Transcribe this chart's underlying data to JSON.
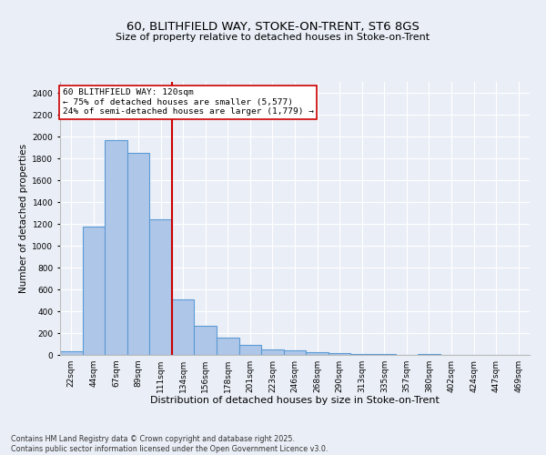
{
  "title": "60, BLITHFIELD WAY, STOKE-ON-TRENT, ST6 8GS",
  "subtitle": "Size of property relative to detached houses in Stoke-on-Trent",
  "xlabel": "Distribution of detached houses by size in Stoke-on-Trent",
  "ylabel": "Number of detached properties",
  "categories": [
    "22sqm",
    "44sqm",
    "67sqm",
    "89sqm",
    "111sqm",
    "134sqm",
    "156sqm",
    "178sqm",
    "201sqm",
    "223sqm",
    "246sqm",
    "268sqm",
    "290sqm",
    "313sqm",
    "335sqm",
    "357sqm",
    "380sqm",
    "402sqm",
    "424sqm",
    "447sqm",
    "469sqm"
  ],
  "values": [
    30,
    1175,
    1970,
    1850,
    1240,
    510,
    270,
    155,
    88,
    47,
    38,
    22,
    15,
    10,
    5,
    2,
    8,
    2,
    1,
    1,
    2
  ],
  "bar_color": "#aec6e8",
  "bar_edge_color": "#5b9bd5",
  "bar_linewidth": 0.8,
  "vline_x_index": 4.5,
  "vline_color": "#cc0000",
  "annotation_text": "60 BLITHFIELD WAY: 120sqm\n← 75% of detached houses are smaller (5,577)\n24% of semi-detached houses are larger (1,779) →",
  "annotation_box_color": "#ffffff",
  "annotation_box_edge": "#cc0000",
  "ylim": [
    0,
    2500
  ],
  "yticks": [
    0,
    200,
    400,
    600,
    800,
    1000,
    1200,
    1400,
    1600,
    1800,
    2000,
    2200,
    2400
  ],
  "bg_color": "#eaeff7",
  "plot_bg_color": "#eaeff7",
  "grid_color": "#ffffff",
  "footnote": "Contains HM Land Registry data © Crown copyright and database right 2025.\nContains public sector information licensed under the Open Government Licence v3.0.",
  "title_fontsize": 9.5,
  "xlabel_fontsize": 8,
  "ylabel_fontsize": 7.5,
  "tick_fontsize": 6.5,
  "annotation_fontsize": 6.8,
  "footnote_fontsize": 5.8
}
